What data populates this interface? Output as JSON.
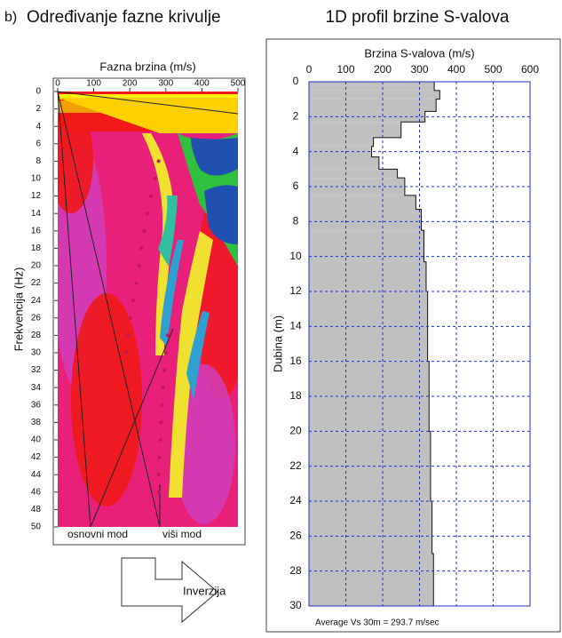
{
  "label": "b)",
  "arrow_label": "Inverzija",
  "chart_data": [
    {
      "type": "dispersion",
      "title": "Određivanje fazne krivulje",
      "xlabel": "Fazna brzina (m/s)",
      "ylabel": "Frekvencija (Hz)",
      "xlim": [
        0,
        500
      ],
      "xticks": [
        0,
        100,
        200,
        300,
        400,
        500
      ],
      "ylim": [
        0,
        50
      ],
      "yticks": [
        0,
        2,
        4,
        6,
        8,
        10,
        12,
        14,
        16,
        18,
        20,
        22,
        24,
        26,
        28,
        30,
        32,
        34,
        36,
        38,
        40,
        42,
        44,
        46,
        48,
        50
      ],
      "y_inverted": true,
      "annotations": [
        "osnovni mod",
        "viši mod"
      ],
      "modes": [
        {
          "color": "#c0185a",
          "x": [
            280,
            270,
            258,
            248,
            240,
            232,
            226,
            218,
            210,
            202,
            195,
            190
          ],
          "y": [
            8,
            10,
            12,
            14,
            16,
            18,
            20,
            22,
            24,
            26,
            28,
            30
          ]
        },
        {
          "color": "#c0185a",
          "x": [
            305,
            300,
            296,
            292,
            290,
            287,
            285,
            282,
            280,
            280
          ],
          "y": [
            28,
            30,
            32,
            34,
            36,
            38,
            40,
            42,
            44,
            46
          ]
        }
      ]
    },
    {
      "type": "profile",
      "title": "1D profil brzine S-valova",
      "xlabel": "Brzina S-valova (m/s)",
      "ylabel": "Dubina (m)",
      "xlim": [
        0,
        600
      ],
      "xticks": [
        0,
        100,
        200,
        300,
        400,
        500,
        600
      ],
      "ylim": [
        0,
        30
      ],
      "yticks": [
        0,
        2,
        4,
        6,
        8,
        10,
        12,
        14,
        16,
        18,
        20,
        22,
        24,
        26,
        28,
        30
      ],
      "y_inverted": true,
      "grid": true,
      "color": "#c0c0c0",
      "depth_top": [
        0,
        0.5,
        1,
        1.7,
        2.3,
        3.2,
        3.7,
        4.3,
        5,
        5.5,
        6.5,
        7.3,
        8.5,
        10.3,
        12,
        16,
        20,
        24,
        27
      ],
      "values": [
        340,
        355,
        345,
        315,
        250,
        175,
        170,
        190,
        240,
        260,
        290,
        305,
        312,
        318,
        322,
        326,
        330,
        334,
        338
      ],
      "annotation": "Average Vs 30m = 293.7 m/sec"
    }
  ]
}
